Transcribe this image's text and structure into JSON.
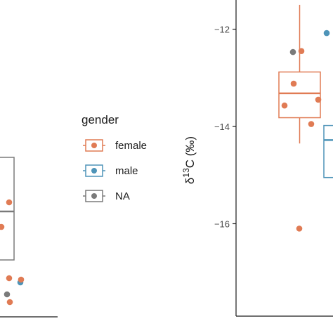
{
  "colors": {
    "female": "#e07b54",
    "male": "#4e94b8",
    "NA": "#7a7a7a",
    "axis": "#1a1a1a"
  },
  "legend": {
    "title": "gender",
    "items": [
      {
        "key": "female",
        "label": "female"
      },
      {
        "key": "male",
        "label": "male"
      },
      {
        "key": "NA",
        "label": "NA"
      }
    ]
  },
  "chart_data": [
    {
      "type": "box",
      "panel": "left (partially cropped)",
      "ylabel": "",
      "groups": [
        {
          "gender": "female",
          "partially_visible": true
        }
      ],
      "points": [
        {
          "gender": "female"
        },
        {
          "gender": "female"
        },
        {
          "gender": "female"
        },
        {
          "gender": "male"
        },
        {
          "gender": "NA"
        },
        {
          "gender": "female"
        },
        {
          "gender": "female"
        }
      ]
    },
    {
      "type": "box",
      "panel": "right",
      "ylabel": "δ13C (‰)",
      "ylabel_parts": {
        "delta": "δ",
        "sup": "13",
        "rest": "C (‰)"
      },
      "ylim": [
        -17.9,
        -11.4
      ],
      "yticks": [
        -12,
        -14,
        -16
      ],
      "ytick_labels": [
        "−12",
        "−14",
        "−16"
      ],
      "boxes": [
        {
          "gender": "female",
          "whisker_low": -14.35,
          "q1": -13.82,
          "median": -13.32,
          "q3": -12.88,
          "whisker_high": -11.5
        },
        {
          "gender": "male",
          "whisker_low": -15.05,
          "q1": -15.05,
          "median": -14.28,
          "q3": -13.98,
          "whisker_high": -13.98,
          "partially_visible": true
        }
      ],
      "points": [
        {
          "gender": "female",
          "y": -12.45
        },
        {
          "gender": "NA",
          "y": -12.47
        },
        {
          "gender": "female",
          "y": -13.12
        },
        {
          "gender": "female",
          "y": -13.45
        },
        {
          "gender": "female",
          "y": -13.57
        },
        {
          "gender": "female",
          "y": -13.95
        },
        {
          "gender": "female",
          "y": -16.1
        },
        {
          "gender": "male",
          "y": -12.08
        }
      ]
    }
  ]
}
